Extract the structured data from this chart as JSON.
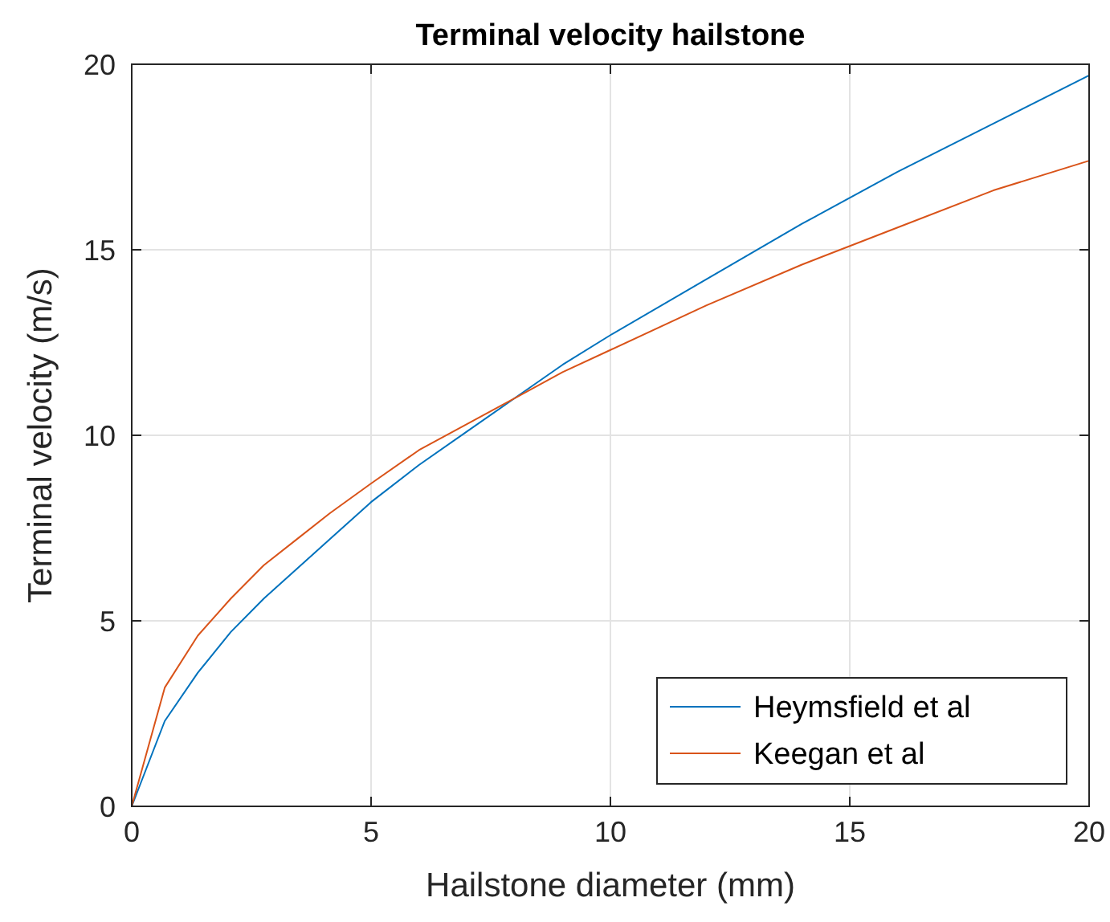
{
  "chart_data": {
    "type": "line",
    "title": "Terminal velocity hailstone",
    "xlabel": "Hailstone diameter (mm)",
    "ylabel": "Terminal velocity (m/s)",
    "x": [
      0,
      0.69,
      1.38,
      2.07,
      2.76,
      3.45,
      4.14,
      5,
      6,
      7,
      8,
      9,
      10,
      12,
      14,
      16,
      18,
      20
    ],
    "series": [
      {
        "name": "Heymsfield et al",
        "color": "#0072bd",
        "values": [
          0,
          2.3,
          3.6,
          4.7,
          5.6,
          6.4,
          7.2,
          8.2,
          9.2,
          10.1,
          11.0,
          11.9,
          12.7,
          14.2,
          15.7,
          17.1,
          18.4,
          19.7
        ]
      },
      {
        "name": "Keegan et al",
        "color": "#d95319",
        "values": [
          0,
          3.2,
          4.6,
          5.6,
          6.5,
          7.2,
          7.9,
          8.7,
          9.6,
          10.3,
          11.0,
          11.7,
          12.3,
          13.5,
          14.6,
          15.6,
          16.6,
          17.4
        ]
      }
    ],
    "xlim": [
      0,
      20
    ],
    "ylim": [
      0,
      20
    ],
    "xticks": [
      0,
      5,
      10,
      15,
      20
    ],
    "yticks": [
      0,
      5,
      10,
      15,
      20
    ],
    "grid": true,
    "legend": "bottom right",
    "marker": "none",
    "line_style": "solid"
  }
}
